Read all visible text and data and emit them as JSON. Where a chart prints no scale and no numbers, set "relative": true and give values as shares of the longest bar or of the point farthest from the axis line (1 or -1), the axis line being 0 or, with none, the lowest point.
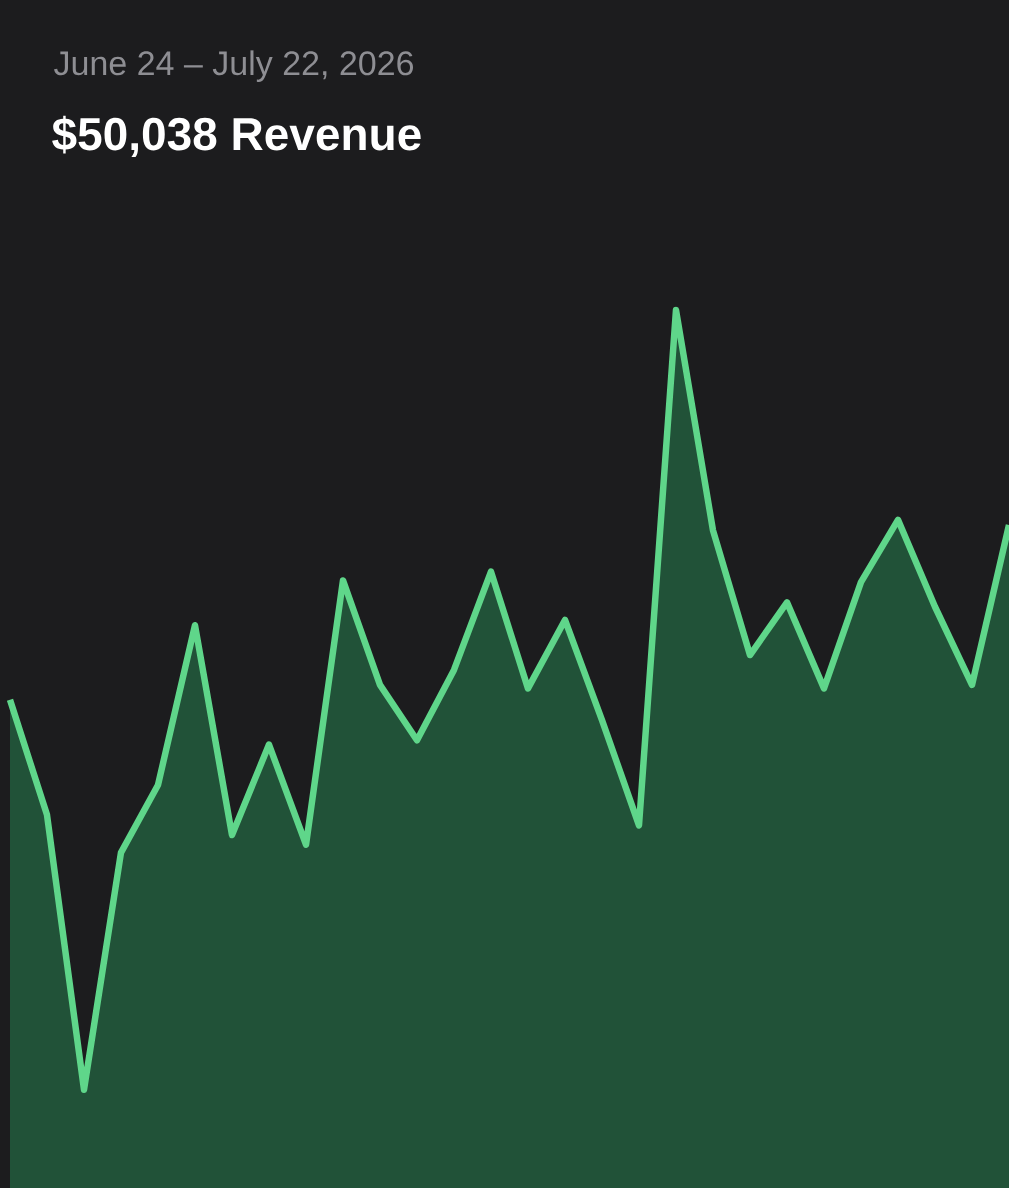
{
  "chart_data": {
    "type": "area",
    "title": "$50,038 Revenue",
    "subtitle": "June 24 – July 22, 2026",
    "relative": true,
    "categories": [
      null,
      null,
      null,
      null,
      null,
      null,
      null,
      null,
      null,
      null,
      null,
      null,
      null,
      null,
      null,
      null,
      null,
      null,
      null,
      null,
      null,
      null,
      null,
      null,
      null,
      null,
      null,
      null
    ],
    "color": "#5fd68a",
    "values": [
      0.556,
      0.425,
      0.112,
      0.382,
      0.459,
      0.641,
      0.402,
      0.505,
      0.391,
      0.692,
      0.573,
      0.51,
      0.59,
      0.702,
      0.569,
      0.647,
      0.533,
      0.413,
      1,
      0.749,
      0.607,
      0.667,
      0.569,
      0.69,
      0.761,
      0.662,
      0.573,
      0.755
    ]
  }
}
